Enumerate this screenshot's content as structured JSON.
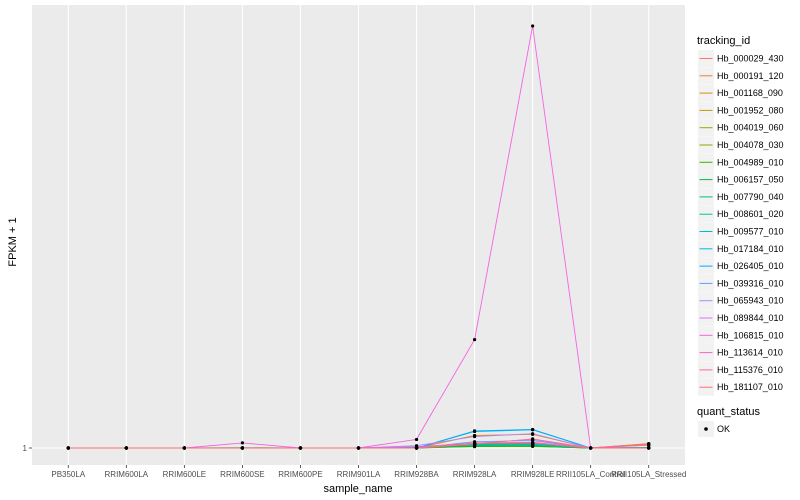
{
  "chart_data": {
    "type": "line",
    "xlabel": "sample_name",
    "ylabel": "FPKM + 1",
    "y_ticks": [
      "1"
    ],
    "grid": true,
    "legend_position": "right",
    "categories": [
      "PB350LA",
      "RRIM600LA",
      "RRIM600LE",
      "RRIM600SE",
      "RRIM600PE",
      "RRIM901LA",
      "RRIM928BA",
      "RRIM928LA",
      "RRIM928LE",
      "RRII105LA_Control",
      "RRII105LA_Stressed"
    ],
    "series": [
      {
        "name": "Hb_000029_430",
        "color": "#F8766D",
        "values": [
          1,
          1,
          1,
          1,
          1,
          1,
          1,
          1.8,
          1.85,
          1,
          1.75
        ]
      },
      {
        "name": "Hb_000191_120",
        "color": "#EA8331",
        "values": [
          1,
          1,
          1,
          1,
          1,
          1,
          1,
          1.7,
          1.75,
          1,
          1.78
        ]
      },
      {
        "name": "Hb_001168_090",
        "color": "#D89000",
        "values": [
          1,
          1,
          1,
          1,
          1,
          1,
          1,
          3.2,
          3.4,
          1,
          1.6
        ]
      },
      {
        "name": "Hb_001952_080",
        "color": "#C09B00",
        "values": [
          1,
          1,
          1,
          1,
          1,
          1,
          1,
          1.65,
          1.7,
          1,
          1
        ]
      },
      {
        "name": "Hb_004019_060",
        "color": "#A3A500",
        "values": [
          1,
          1,
          1,
          1,
          1,
          1,
          1,
          1.25,
          1.3,
          1,
          1
        ]
      },
      {
        "name": "Hb_004078_030",
        "color": "#7CAE00",
        "values": [
          1,
          1,
          1,
          1,
          1,
          1,
          1,
          1.3,
          1.33,
          1,
          1
        ]
      },
      {
        "name": "Hb_004989_010",
        "color": "#39B600",
        "values": [
          1,
          1,
          1,
          1,
          1,
          1,
          1.05,
          1.25,
          1.28,
          1,
          1
        ]
      },
      {
        "name": "Hb_006157_050",
        "color": "#00BB4E",
        "values": [
          1,
          1,
          1,
          1.05,
          1,
          1,
          1.1,
          1.35,
          1.4,
          1,
          1
        ]
      },
      {
        "name": "Hb_007790_040",
        "color": "#00BF7D",
        "values": [
          1,
          1,
          1,
          1,
          1,
          1,
          1.15,
          1.5,
          1.55,
          1,
          1.1
        ]
      },
      {
        "name": "Hb_008601_020",
        "color": "#00C1A3",
        "values": [
          1,
          1,
          1,
          1,
          1,
          1,
          1,
          1.6,
          1.6,
          1,
          1.1
        ]
      },
      {
        "name": "Hb_009577_010",
        "color": "#00BFC4",
        "values": [
          1,
          1,
          1,
          1,
          1,
          1,
          1,
          1.7,
          1.75,
          1,
          1
        ]
      },
      {
        "name": "Hb_017184_010",
        "color": "#00B8E7",
        "values": [
          1,
          1,
          1,
          1,
          1,
          1,
          1,
          3.9,
          4.2,
          1,
          1
        ]
      },
      {
        "name": "Hb_026405_010",
        "color": "#00A9FF",
        "values": [
          1,
          1,
          1,
          1,
          1,
          1,
          1,
          4.0,
          4.25,
          1,
          1
        ]
      },
      {
        "name": "Hb_039316_010",
        "color": "#619CFF",
        "values": [
          1,
          1,
          1,
          1,
          1,
          1,
          1,
          2.1,
          2.3,
          1,
          1
        ]
      },
      {
        "name": "Hb_065943_010",
        "color": "#AE87FF",
        "values": [
          1,
          1,
          1,
          1,
          1,
          1,
          1.4,
          3.0,
          3.5,
          1,
          1
        ]
      },
      {
        "name": "Hb_089844_010",
        "color": "#DB72FB",
        "values": [
          1,
          1,
          1,
          1,
          1,
          1,
          1.25,
          1.8,
          2.5,
          1,
          1
        ]
      },
      {
        "name": "Hb_106815_010",
        "color": "#F564E3",
        "values": [
          1,
          1,
          1,
          1.9,
          1,
          1,
          2.5,
          20,
          75,
          1,
          1.5
        ]
      },
      {
        "name": "Hb_113614_010",
        "color": "#FF61C3",
        "values": [
          1,
          1,
          1,
          1,
          1,
          1,
          1,
          1.9,
          2.0,
          1,
          1.5
        ]
      },
      {
        "name": "Hb_115376_010",
        "color": "#FF6C91",
        "values": [
          1,
          1,
          1,
          1,
          1,
          1,
          1,
          1.7,
          2.6,
          1,
          1
        ]
      },
      {
        "name": "Hb_181107_010",
        "color": "#FF6C77",
        "values": [
          1,
          1,
          1,
          1,
          1,
          1,
          1,
          1.85,
          1.9,
          1,
          1
        ]
      }
    ],
    "legend_title": "tracking_id",
    "legend2_title": "quant_status",
    "legend2_item": "OK"
  }
}
